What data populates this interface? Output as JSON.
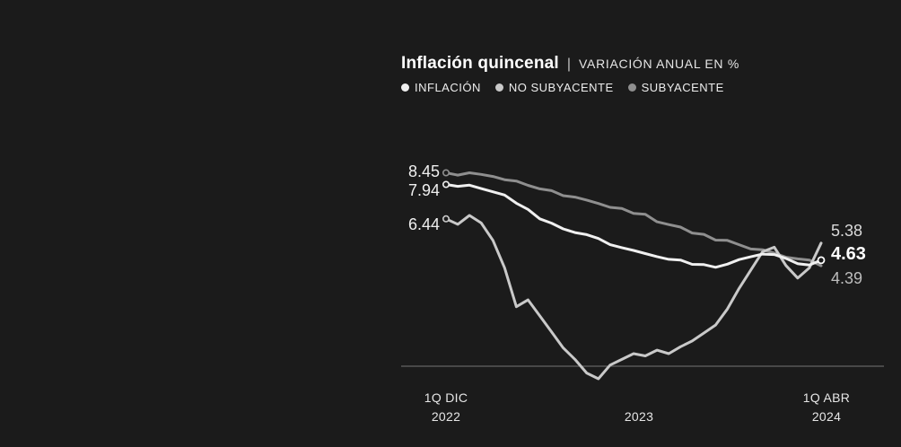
{
  "title": {
    "main": "Inflación quincenal",
    "separator": "|",
    "subtitle": "VARIACIÓN ANUAL EN %"
  },
  "legend": [
    {
      "label": "INFLACIÓN",
      "color": "#f0f0f0"
    },
    {
      "label": "NO SUBYACENTE",
      "color": "#c9c9c9"
    },
    {
      "label": "SUBYACENTE",
      "color": "#8f8f8f"
    }
  ],
  "point_labels": {
    "start": [
      {
        "value": "8.45",
        "series": "SUBYACENTE"
      },
      {
        "value": "7.94",
        "series": "INFLACIÓN"
      },
      {
        "value": "6.44",
        "series": "NO SUBYACENTE"
      }
    ],
    "end": [
      {
        "value": "5.38",
        "series": "NO SUBYACENTE"
      },
      {
        "value": "4.63",
        "series": "INFLACIÓN",
        "emphasis": true
      },
      {
        "value": "4.39",
        "series": "SUBYACENTE"
      }
    ]
  },
  "x_axis_labels": [
    {
      "line1": "1Q DIC",
      "line2": "2022"
    },
    {
      "line1": "",
      "line2": "2023"
    },
    {
      "line1": "1Q ABR",
      "line2": "2024"
    }
  ],
  "chart_data": {
    "type": "line",
    "title": "Inflación quincenal",
    "subtitle": "VARIACIÓN ANUAL EN %",
    "unit": "variación anual en %",
    "x_range": {
      "start": "1Q DIC 2022",
      "mid": "2023",
      "end": "1Q ABR 2024",
      "frequency": "quincenal",
      "points": 33
    },
    "ylim": [
      -1,
      9
    ],
    "zero_line": true,
    "grid": false,
    "legend_position": "top",
    "series": [
      {
        "id": "inflacion",
        "name": "INFLACIÓN",
        "color": "#f0f0f0",
        "start_value": 7.94,
        "end_value": 4.63,
        "values": [
          7.94,
          7.86,
          7.91,
          7.76,
          7.62,
          7.48,
          7.12,
          6.85,
          6.44,
          6.25,
          6.0,
          5.84,
          5.75,
          5.58,
          5.31,
          5.18,
          5.06,
          4.92,
          4.79,
          4.67,
          4.64,
          4.45,
          4.44,
          4.32,
          4.46,
          4.66,
          4.78,
          4.9,
          4.88,
          4.71,
          4.48,
          4.42,
          4.63
        ]
      },
      {
        "id": "no-subyacente",
        "name": "NO SUBYACENTE",
        "color": "#c9c9c9",
        "start_value": 6.44,
        "end_value": 5.38,
        "values": [
          6.44,
          6.2,
          6.59,
          6.26,
          5.5,
          4.3,
          2.6,
          2.9,
          2.2,
          1.5,
          0.8,
          0.3,
          -0.3,
          -0.55,
          0.05,
          0.3,
          0.55,
          0.45,
          0.7,
          0.55,
          0.85,
          1.1,
          1.45,
          1.8,
          2.5,
          3.4,
          4.2,
          5.0,
          5.2,
          4.4,
          3.85,
          4.3,
          5.38
        ]
      },
      {
        "id": "subyacente",
        "name": "SUBYACENTE",
        "color": "#8f8f8f",
        "start_value": 8.45,
        "end_value": 4.39,
        "values": [
          8.45,
          8.35,
          8.45,
          8.38,
          8.29,
          8.15,
          8.09,
          7.9,
          7.75,
          7.67,
          7.45,
          7.39,
          7.26,
          7.11,
          6.94,
          6.89,
          6.68,
          6.64,
          6.31,
          6.19,
          6.08,
          5.82,
          5.76,
          5.51,
          5.5,
          5.31,
          5.12,
          5.09,
          4.94,
          4.76,
          4.69,
          4.64,
          4.39
        ]
      }
    ]
  }
}
